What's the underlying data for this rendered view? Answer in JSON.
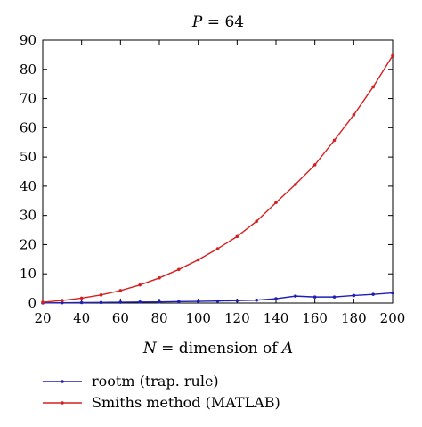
{
  "chart_data": {
    "type": "line",
    "title": "P = 64",
    "xlabel": "N = dimension of A",
    "ylabel": "",
    "xlim": [
      20,
      200
    ],
    "ylim": [
      0,
      90
    ],
    "xticks": [
      20,
      40,
      60,
      80,
      100,
      120,
      140,
      160,
      180,
      200
    ],
    "yticks": [
      0,
      10,
      20,
      30,
      40,
      50,
      60,
      70,
      80,
      90
    ],
    "grid": false,
    "legend_position": "bottom-left, below plot",
    "x": [
      20,
      30,
      40,
      50,
      60,
      70,
      80,
      90,
      100,
      110,
      120,
      130,
      140,
      150,
      160,
      170,
      180,
      190,
      200
    ],
    "series": [
      {
        "name": "rootm (trap. rule)",
        "color": "#1f1fb4",
        "values": [
          0.05,
          0.1,
          0.15,
          0.2,
          0.3,
          0.35,
          0.4,
          0.5,
          0.6,
          0.7,
          0.85,
          1.0,
          1.5,
          2.4,
          2.1,
          2.1,
          2.6,
          3.0,
          3.5
        ]
      },
      {
        "name": "Smiths method (MATLAB)",
        "color": "#d42020",
        "values": [
          0.3,
          0.9,
          1.7,
          2.8,
          4.3,
          6.2,
          8.6,
          11.5,
          14.8,
          18.6,
          22.8,
          28.0,
          34.4,
          40.6,
          47.3,
          55.7,
          64.4,
          74.0,
          84.7
        ]
      }
    ]
  }
}
